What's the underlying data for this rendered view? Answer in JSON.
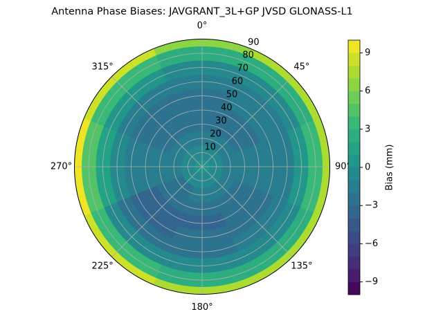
{
  "chart_data": {
    "type": "polar-contour",
    "title": "Antenna Phase Biases: JAVGRANT_3L+GP  JVSD GLONASS-L1",
    "theta": [
      0,
      45,
      90,
      135,
      180,
      225,
      270,
      315
    ],
    "r": [
      0,
      10,
      20,
      30,
      40,
      50,
      60,
      70,
      80,
      90
    ],
    "values": [
      [
        0,
        -1,
        -2,
        -2.5,
        -2.5,
        -2.5,
        -2,
        -1,
        2,
        6
      ],
      [
        0,
        -1,
        -2,
        -2.5,
        -2.5,
        -2,
        -1.5,
        -0.5,
        2.5,
        7
      ],
      [
        0,
        -0.5,
        -1.5,
        -2,
        -2,
        -2,
        -1.5,
        0,
        3,
        7
      ],
      [
        0,
        -1,
        -2,
        -2.5,
        -3,
        -3,
        -2,
        -0.5,
        2.5,
        7
      ],
      [
        0,
        -1,
        -2,
        -3,
        -3.5,
        -3,
        -2.5,
        -1,
        2,
        7
      ],
      [
        0,
        -1,
        -2.5,
        -3,
        -3.5,
        -3.5,
        -2.5,
        -0.5,
        3,
        8
      ],
      [
        0,
        -0.5,
        -1.5,
        -2,
        -2,
        -2,
        -1,
        1,
        4,
        9
      ],
      [
        0,
        -1,
        -2,
        -2.5,
        -2.5,
        -2.5,
        -1.5,
        0,
        3,
        8
      ]
    ],
    "thetaticks": [
      {
        "value": 0,
        "label": "0°"
      },
      {
        "value": 45,
        "label": "45°"
      },
      {
        "value": 90,
        "label": "90°"
      },
      {
        "value": 135,
        "label": "135°"
      },
      {
        "value": 180,
        "label": "180°"
      },
      {
        "value": 225,
        "label": "225°"
      },
      {
        "value": 270,
        "label": "270°"
      },
      {
        "value": 315,
        "label": "315°"
      }
    ],
    "rlim": [
      0,
      90
    ],
    "rticks": [
      10,
      20,
      30,
      40,
      50,
      60,
      70,
      80,
      90
    ],
    "colormap": "viridis",
    "levels": [
      -10,
      -9,
      -8,
      -7,
      -6,
      -5,
      -4,
      -3,
      -2,
      -1,
      0,
      1,
      2,
      3,
      4,
      5,
      6,
      7,
      8,
      9,
      10
    ],
    "colorbar_label": "Bias (mm)",
    "cticks": [
      {
        "value": -9,
        "label": "−9"
      },
      {
        "value": -6,
        "label": "−6"
      },
      {
        "value": -3,
        "label": "−3"
      },
      0,
      3,
      6,
      9
    ],
    "grid": true
  }
}
